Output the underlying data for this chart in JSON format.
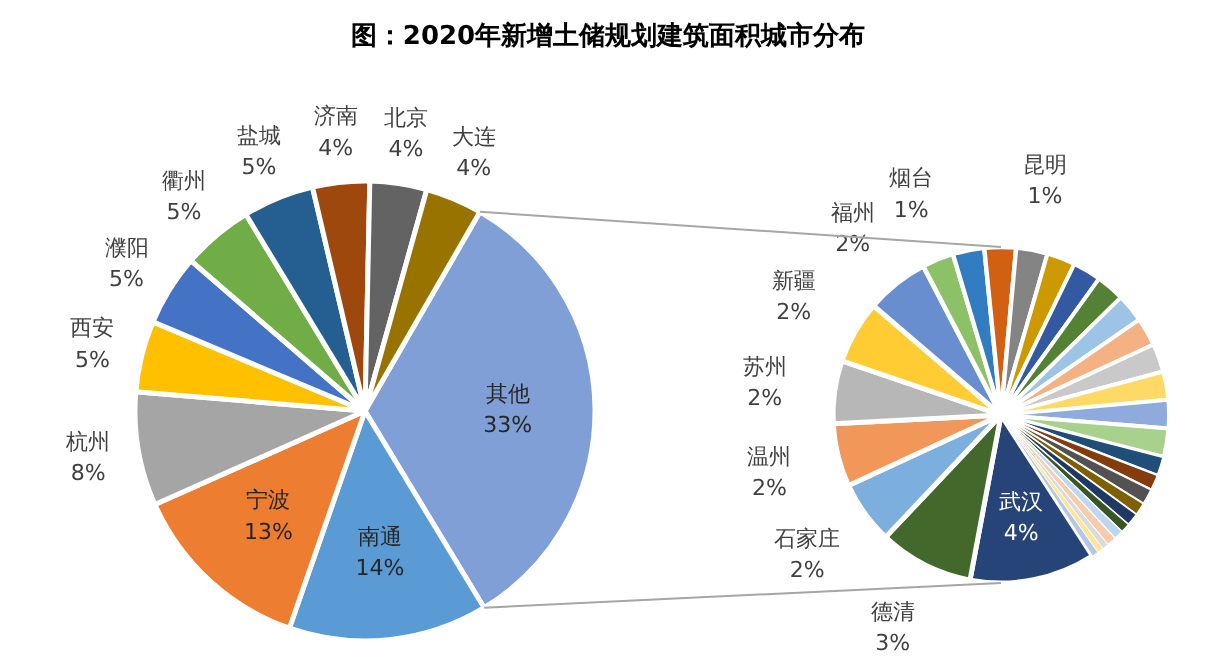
{
  "chart_data": [
    {
      "type": "pie",
      "title": "图：2020年新增土储规划建筑面积城市分布",
      "categories": [
        "其他",
        "南通",
        "宁波",
        "杭州",
        "西安",
        "濮阳",
        "衢州",
        "盐城",
        "济南",
        "北京",
        "大连"
      ],
      "values": [
        33,
        14,
        13,
        8,
        5,
        5,
        5,
        5,
        4,
        4,
        4
      ],
      "value_labels": [
        "33%",
        "14%",
        "13%",
        "8%",
        "5%",
        "5%",
        "5%",
        "5%",
        "4%",
        "4%",
        "4%"
      ],
      "colors": [
        "#7f9fd6",
        "#5b9bd5",
        "#ed7d31",
        "#a5a5a5",
        "#ffc000",
        "#4472c4",
        "#70ad47",
        "#255e91",
        "#9e480e",
        "#636363",
        "#997300"
      ]
    },
    {
      "type": "pie",
      "categories": [
        "武汉",
        "德清",
        "石家庄",
        "温州",
        "苏州",
        "新疆",
        "福州",
        "烟台",
        null,
        null,
        "昆明",
        null,
        null,
        null,
        null,
        null,
        null,
        null,
        null,
        null,
        null,
        null,
        null,
        null,
        null,
        null,
        null,
        null,
        null,
        null,
        null
      ],
      "values": [
        4,
        3,
        2,
        2,
        2,
        2,
        2,
        1,
        1,
        1,
        1,
        0.9,
        0.9,
        0.9,
        0.9,
        0.9,
        0.9,
        0.9,
        0.9,
        0.9,
        0.6,
        0.5,
        0.5,
        0.4,
        0.4,
        0.3,
        0.3,
        0.3,
        0.2,
        0.2,
        0.2
      ],
      "value_labels": [
        "4%",
        "3%",
        "2%",
        "2%",
        "2%",
        "2%",
        "2%",
        "1%",
        null,
        null,
        "1%",
        null,
        null,
        null,
        null,
        null,
        null,
        null,
        null,
        null,
        null,
        null,
        null,
        null,
        null,
        null,
        null,
        null,
        null,
        null,
        null
      ],
      "colors": [
        "#264478",
        "#43682b",
        "#7cafdd",
        "#f1975a",
        "#b7b7b7",
        "#ffcd33",
        "#698ed0",
        "#8cc168",
        "#327dc2",
        "#d26012",
        "#848484",
        "#cc9a00",
        "#335aa1",
        "#548235",
        "#9dc3e6",
        "#f4b183",
        "#c9c9c9",
        "#ffd966",
        "#8faadc",
        "#a9d18e",
        "#1f4e79",
        "#843c0c",
        "#525252",
        "#7f6000",
        "#203864",
        "#375623",
        "#bdd7ee",
        "#f8cbad",
        "#dbdbdb",
        "#ffe699",
        "#b4c7e7"
      ]
    }
  ]
}
